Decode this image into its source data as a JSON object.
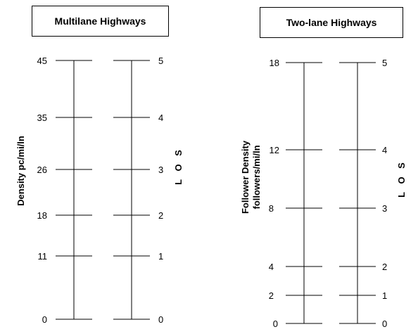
{
  "multilane": {
    "title": "Multilane Highways",
    "density_label": "Density pc/mi/ln",
    "los_label": "L O S",
    "density_ticks": [
      "45",
      "35",
      "26",
      "18",
      "11",
      "0"
    ],
    "los_ticks": [
      "5",
      "4",
      "3",
      "2",
      "1",
      "0"
    ]
  },
  "twolane": {
    "title": "Two-lane Highways",
    "density_label_line1": "Follower Density",
    "density_label_line2": "followers/mi/ln",
    "los_label": "L O S",
    "density_ticks": [
      "18",
      "12",
      "8",
      "4",
      "2",
      "0"
    ],
    "los_ticks": [
      "5",
      "4",
      "3",
      "2",
      "1",
      "0"
    ]
  }
}
